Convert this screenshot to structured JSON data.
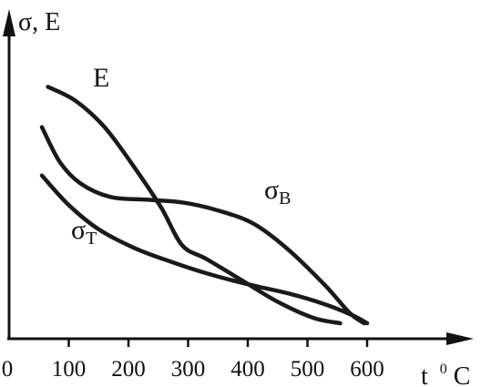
{
  "chart_data": {
    "type": "line",
    "ylabel": "σ, E",
    "xlabel_main": "t",
    "xlabel_sup": "0",
    "xlabel_unit": "C",
    "x_ticks": [
      "0",
      "100",
      "200",
      "300",
      "400",
      "500",
      "600"
    ],
    "xlim": [
      0,
      700
    ],
    "ylim": [
      0,
      100
    ],
    "grid": false,
    "series": [
      {
        "name": "E",
        "label_main": "E",
        "label_sub": "",
        "color": "#1a1a1a",
        "points": [
          [
            65,
            88
          ],
          [
            110,
            83
          ],
          [
            160,
            73
          ],
          [
            210,
            58
          ],
          [
            255,
            43
          ],
          [
            290,
            29
          ],
          [
            330,
            24
          ],
          [
            390,
            16
          ],
          [
            450,
            8
          ],
          [
            510,
            2
          ],
          [
            555,
            0
          ]
        ]
      },
      {
        "name": "σB",
        "label_main": "σ",
        "label_sub": "B",
        "color": "#1a1a1a",
        "points": [
          [
            55,
            73
          ],
          [
            85,
            60
          ],
          [
            120,
            52
          ],
          [
            170,
            47
          ],
          [
            230,
            46
          ],
          [
            290,
            45
          ],
          [
            350,
            42
          ],
          [
            410,
            37
          ],
          [
            470,
            27
          ],
          [
            530,
            14
          ],
          [
            570,
            4
          ],
          [
            595,
            0
          ]
        ]
      },
      {
        "name": "σT",
        "label_main": "σ",
        "label_sub": "T",
        "color": "#1a1a1a",
        "points": [
          [
            55,
            55
          ],
          [
            100,
            44
          ],
          [
            150,
            35
          ],
          [
            210,
            28
          ],
          [
            270,
            23
          ],
          [
            340,
            18
          ],
          [
            410,
            14
          ],
          [
            470,
            11
          ],
          [
            530,
            7
          ],
          [
            575,
            3
          ],
          [
            600,
            0
          ]
        ]
      }
    ]
  }
}
